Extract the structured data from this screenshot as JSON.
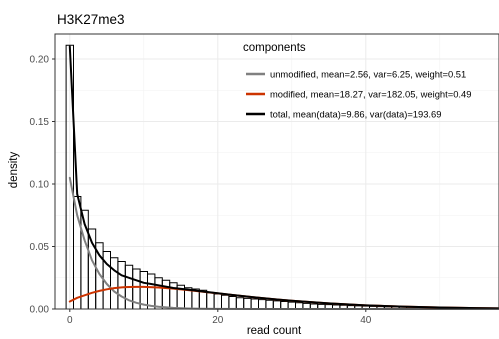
{
  "chart_data": {
    "type": "histogram",
    "title": "H3K27me3",
    "xlabel": "read count",
    "ylabel": "density",
    "xlim": [
      -2,
      58
    ],
    "ylim": [
      0,
      0.22
    ],
    "x_ticks": [
      0,
      20,
      40
    ],
    "x_tick_labels": [
      "0",
      "20",
      "40"
    ],
    "y_ticks": [
      0,
      0.05,
      0.1,
      0.15,
      0.2
    ],
    "y_tick_labels": [
      "0.00",
      "0.05",
      "0.10",
      "0.15",
      "0.20"
    ],
    "grid": true,
    "bin_width": 1,
    "histogram": {
      "bin_starts": [
        0,
        1,
        2,
        3,
        4,
        5,
        6,
        7,
        8,
        9,
        10,
        11,
        12,
        13,
        14,
        15,
        16,
        17,
        18,
        19,
        20,
        21,
        22,
        23,
        24,
        25,
        26,
        27,
        28,
        29,
        30,
        31,
        32,
        33,
        34,
        35,
        36,
        37,
        38,
        39,
        40,
        41,
        42,
        43,
        44,
        45,
        46,
        47,
        48,
        49,
        50,
        51,
        52,
        53,
        54,
        55,
        56,
        57
      ],
      "density": [
        0.211,
        0.09,
        0.079,
        0.064,
        0.053,
        0.046,
        0.041,
        0.038,
        0.035,
        0.032,
        0.03,
        0.028,
        0.025,
        0.023,
        0.021,
        0.019,
        0.017,
        0.016,
        0.015,
        0.013,
        0.012,
        0.011,
        0.01,
        0.009,
        0.0085,
        0.008,
        0.0075,
        0.007,
        0.0065,
        0.006,
        0.0055,
        0.005,
        0.0045,
        0.004,
        0.0037,
        0.0035,
        0.0032,
        0.003,
        0.0027,
        0.0025,
        0.0023,
        0.0021,
        0.0019,
        0.0017,
        0.0016,
        0.0015,
        0.0014,
        0.0013,
        0.0012,
        0.0011,
        0.001,
        0.0009,
        0.0009,
        0.0008,
        0.0008,
        0.0007,
        0.0007,
        0.0006
      ]
    },
    "legend": {
      "title": "components",
      "position": "top-right"
    },
    "series": [
      {
        "name": "unmodified, mean=2.56, var=6.25, weight=0.51",
        "color": "#808080",
        "x": [
          0,
          1,
          2,
          3,
          4,
          5,
          6,
          7,
          8,
          9,
          10,
          11,
          12,
          14,
          16,
          18,
          20,
          25,
          30,
          35,
          40,
          45,
          50,
          55,
          58
        ],
        "y": [
          0.105,
          0.075,
          0.055,
          0.039,
          0.028,
          0.02,
          0.014,
          0.01,
          0.007,
          0.005,
          0.0035,
          0.0025,
          0.0018,
          0.0009,
          0.0004,
          0.0002,
          0.0001,
          0.0,
          0.0,
          0.0,
          0.0,
          0.0,
          0.0,
          0.0,
          0.0
        ]
      },
      {
        "name": "modified, mean=18.27, var=182.05, weight=0.49",
        "color": "#cc3300",
        "x": [
          0,
          1,
          2,
          3,
          4,
          5,
          6,
          7,
          8,
          9,
          10,
          12,
          14,
          16,
          18,
          20,
          22,
          25,
          28,
          30,
          35,
          40,
          45,
          50,
          55,
          58
        ],
        "y": [
          0.006,
          0.009,
          0.011,
          0.013,
          0.0145,
          0.0158,
          0.0167,
          0.0173,
          0.0176,
          0.0177,
          0.0177,
          0.0172,
          0.0163,
          0.0151,
          0.0138,
          0.0125,
          0.0112,
          0.0093,
          0.0076,
          0.0066,
          0.0045,
          0.0029,
          0.0019,
          0.0012,
          0.0007,
          0.0005
        ]
      },
      {
        "name": "total, mean(data)=9.86, var(data)=193.69",
        "color": "#000000",
        "x": [
          0,
          1,
          2,
          3,
          4,
          5,
          6,
          7,
          8,
          9,
          10,
          11,
          12,
          14,
          16,
          18,
          20,
          22,
          25,
          28,
          30,
          35,
          40,
          45,
          50,
          55,
          58
        ],
        "y": [
          0.21,
          0.092,
          0.068,
          0.053,
          0.043,
          0.036,
          0.031,
          0.027,
          0.025,
          0.023,
          0.021,
          0.02,
          0.019,
          0.0168,
          0.0155,
          0.014,
          0.0126,
          0.0112,
          0.0093,
          0.0076,
          0.0066,
          0.0045,
          0.0029,
          0.0019,
          0.0012,
          0.0007,
          0.0005
        ]
      }
    ]
  }
}
